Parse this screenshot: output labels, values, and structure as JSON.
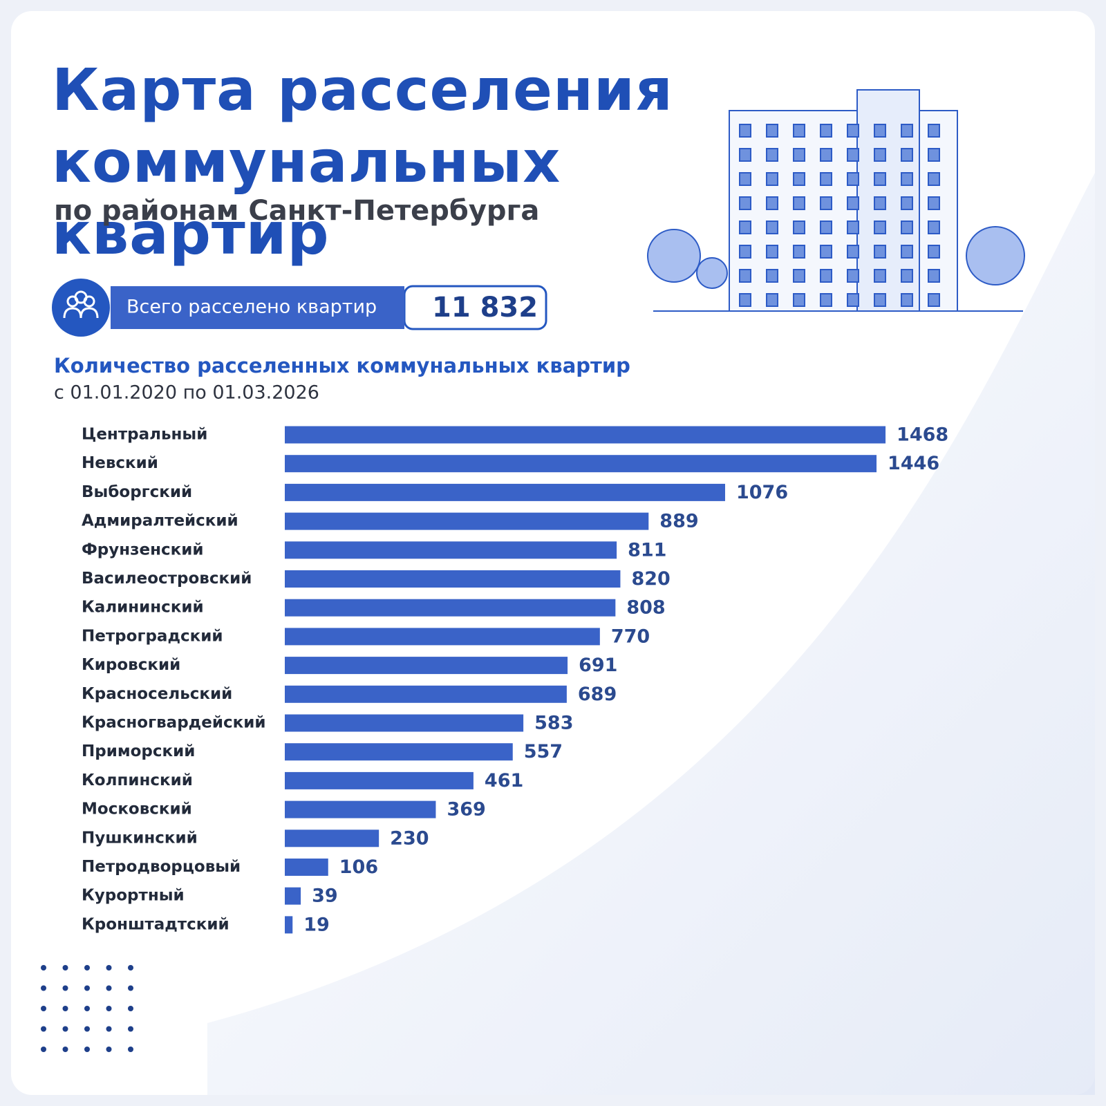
{
  "header": {
    "title": "Карта расселения коммунальных квартир",
    "subtitle": "по районам Санкт-Петербурга"
  },
  "summary": {
    "label": "Всего расселено квартир",
    "total": "11 832"
  },
  "chart_data": {
    "type": "bar",
    "orientation": "horizontal",
    "title": "Количество расселенных коммунальных квартир",
    "subtitle": "с 01.01.2020 по 01.03.2026",
    "categories": [
      "Центральный",
      "Невский",
      "Выборгский",
      "Адмиралтейский",
      "Фрунзенский",
      "Василеостровский",
      "Калининский",
      "Петроградский",
      "Кировский",
      "Красносельский",
      "Красногвардейский",
      "Приморский",
      "Колпинский",
      "Московский",
      "Пушкинский",
      "Петродворцовый",
      "Курортный",
      "Кронштадтский"
    ],
    "values": [
      1468,
      1446,
      1076,
      889,
      811,
      820,
      808,
      770,
      691,
      689,
      583,
      557,
      461,
      369,
      230,
      106,
      39,
      19
    ],
    "color": "#3a63c8",
    "xlim": [
      0,
      1500
    ]
  }
}
